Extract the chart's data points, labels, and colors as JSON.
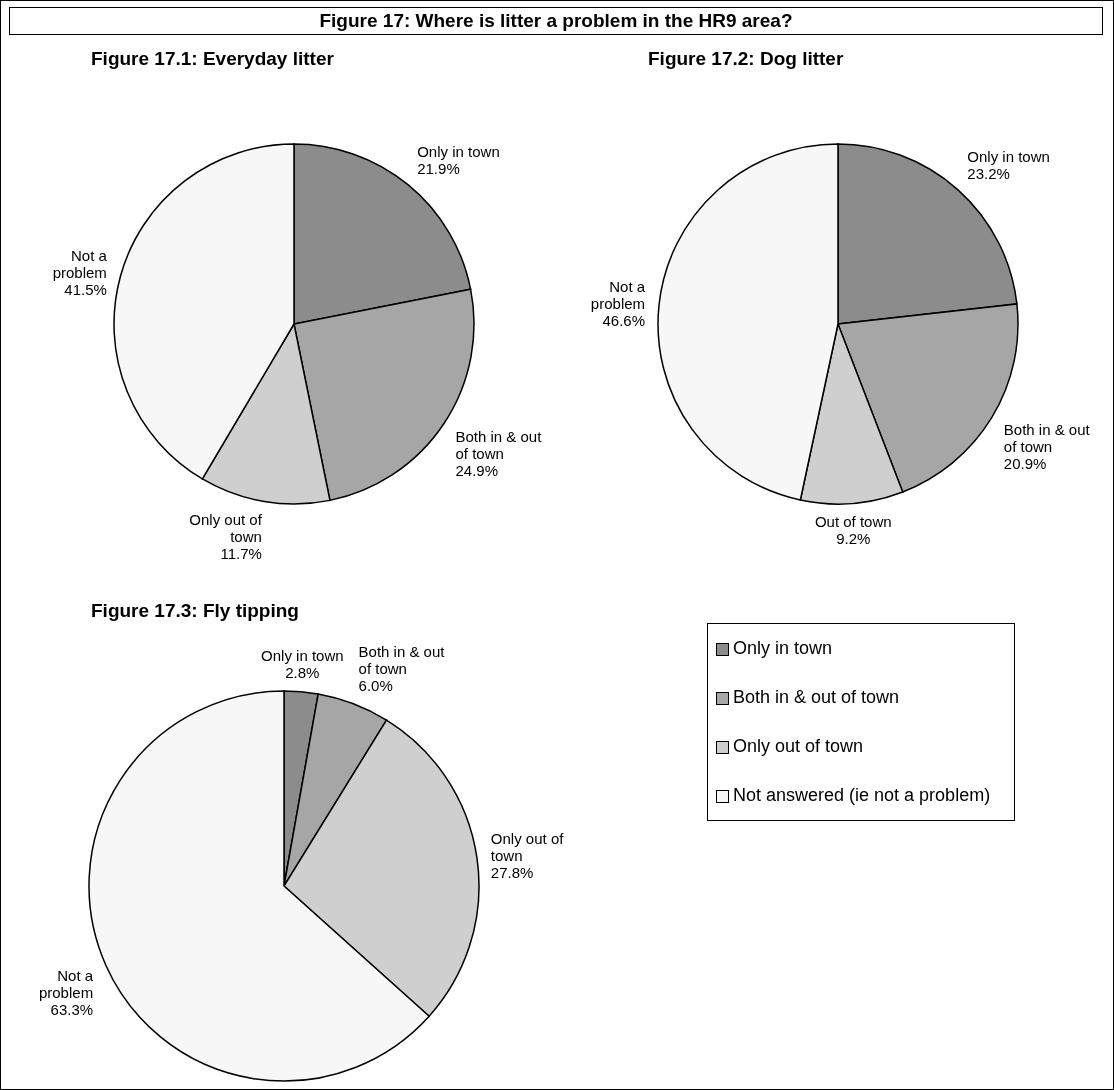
{
  "chart_data": [
    {
      "type": "pie",
      "title": "Figure 17.1: Everyday litter",
      "annotations": [
        "Figure 17: Where is litter a problem in the HR9 area?"
      ],
      "categories": [
        "Only in town",
        "Both in & out of town",
        "Only out of town",
        "Not a problem"
      ],
      "values": [
        21.9,
        24.9,
        11.7,
        41.5
      ],
      "value_labels": [
        "21.9%",
        "24.9%",
        "11.7%",
        "41.5%"
      ],
      "colors": [
        "#8c8c8c",
        "#a6a6a6",
        "#cfcfcf",
        "#f7f7f7"
      ]
    },
    {
      "type": "pie",
      "title": "Figure 17.2: Dog litter",
      "categories": [
        "Only in town",
        "Both in & out of town",
        "Out of town",
        "Not a problem"
      ],
      "values": [
        23.2,
        20.9,
        9.2,
        46.6
      ],
      "value_labels": [
        "23.2%",
        "20.9%",
        "9.2%",
        "46.6%"
      ],
      "colors": [
        "#8c8c8c",
        "#a6a6a6",
        "#cfcfcf",
        "#f7f7f7"
      ]
    },
    {
      "type": "pie",
      "title": "Figure 17.3: Fly tipping",
      "categories": [
        "Only in town",
        "Both in & out of town",
        "Only out of town",
        "Not a problem"
      ],
      "values": [
        2.8,
        6.0,
        27.8,
        63.3
      ],
      "value_labels": [
        "2.8%",
        "6.0%",
        "27.8%",
        "63.3%"
      ],
      "colors": [
        "#8c8c8c",
        "#a6a6a6",
        "#cfcfcf",
        "#f7f7f7"
      ]
    },
    {
      "type": "other",
      "categories": [
        "Only in town",
        "Both in & out of town",
        "Only out of town",
        "Not answered (ie not a problem)"
      ],
      "colors": [
        "#8c8c8c",
        "#a6a6a6",
        "#cfcfcf",
        "#f7f7f7"
      ]
    }
  ]
}
